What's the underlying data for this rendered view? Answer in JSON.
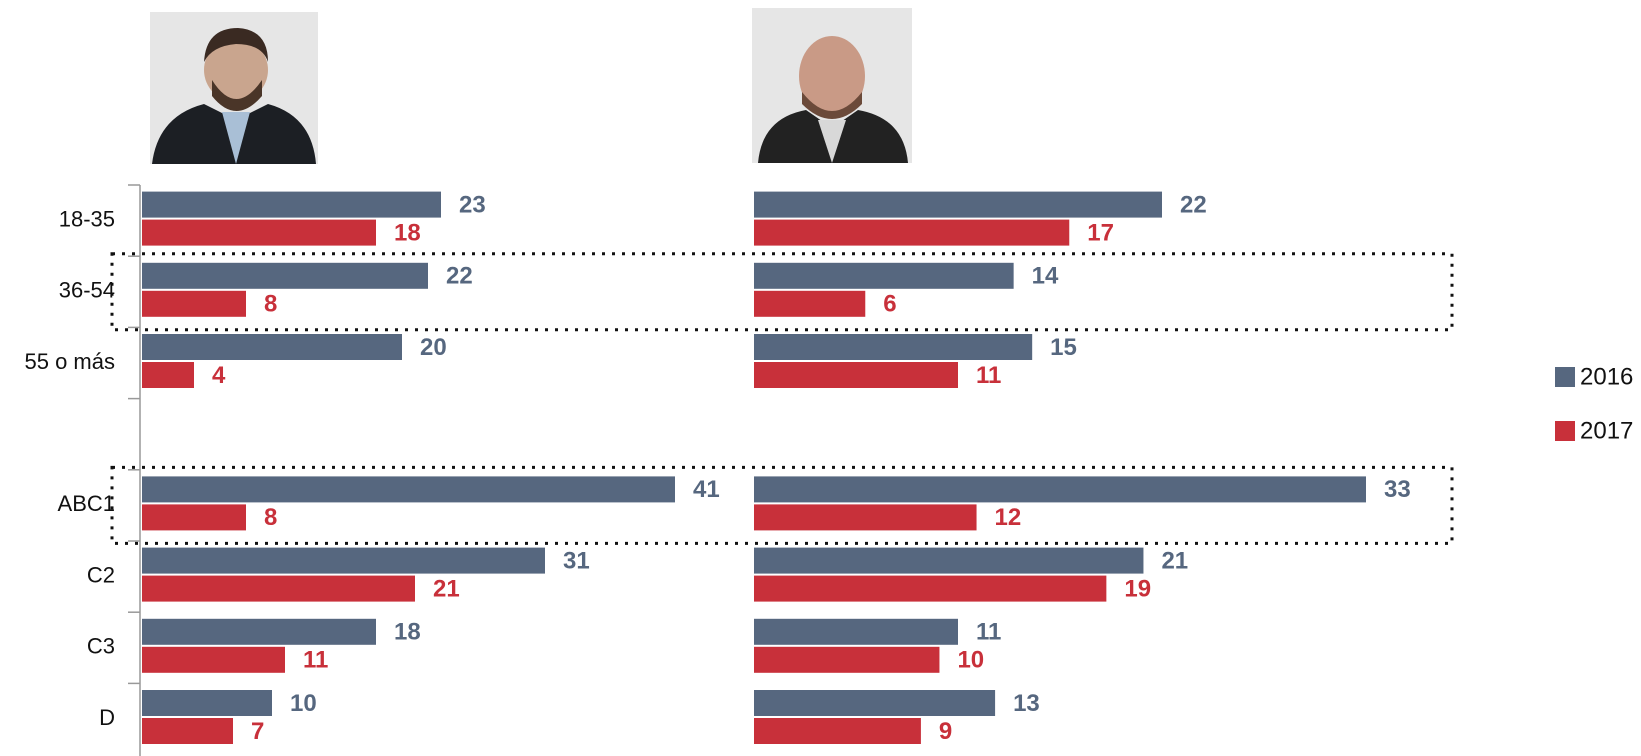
{
  "chart_data": [
    {
      "type": "bar",
      "orientation": "horizontal",
      "categories": [
        "18-35",
        "36-54",
        "55 o más",
        null,
        "ABC1",
        "C2",
        "C3",
        "D"
      ],
      "series": [
        {
          "name": "2016",
          "color": "#56677f",
          "values": [
            23,
            22,
            20,
            null,
            41,
            31,
            18,
            10
          ]
        },
        {
          "name": "2017",
          "color": "#c8303a",
          "values": [
            18,
            8,
            4,
            null,
            8,
            21,
            11,
            7
          ]
        }
      ],
      "xlim": [
        0,
        41
      ]
    },
    {
      "type": "bar",
      "orientation": "horizontal",
      "series": [
        {
          "color": "#56677f",
          "values": [
            22,
            14,
            15,
            null,
            33,
            21,
            11,
            13
          ]
        },
        {
          "color": "#c8303a",
          "values": [
            17,
            6,
            11,
            null,
            12,
            19,
            10,
            9
          ]
        }
      ],
      "xlim": [
        0,
        33
      ]
    }
  ]
}
